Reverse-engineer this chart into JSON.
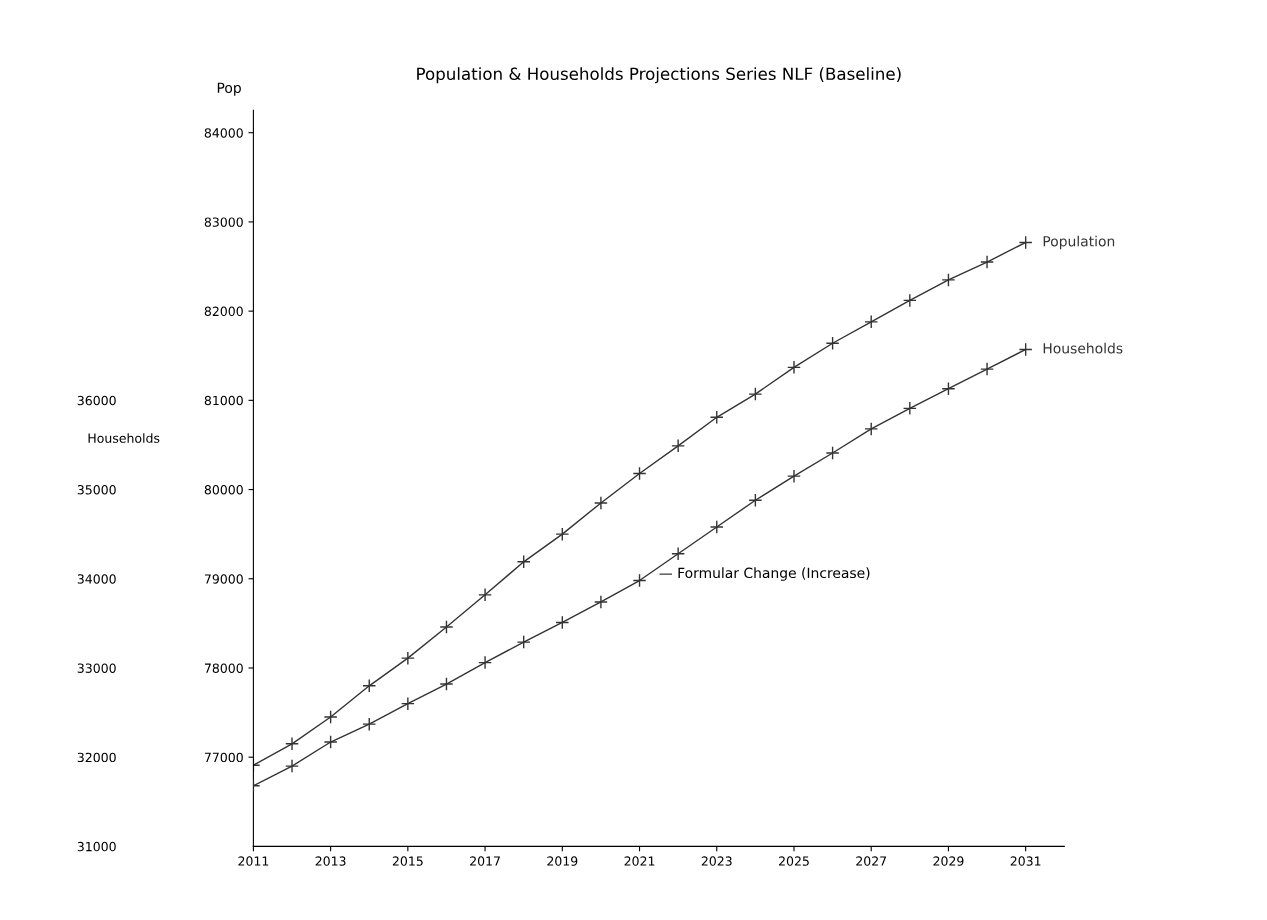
{
  "chart_data": {
    "type": "line",
    "title": "Population & Households Projections Series NLF (Baseline)",
    "ylabel": "Pop",
    "y2label": "Households",
    "x": [
      2011,
      2012,
      2013,
      2014,
      2015,
      2016,
      2017,
      2018,
      2019,
      2020,
      2021,
      2022,
      2023,
      2024,
      2025,
      2026,
      2027,
      2028,
      2029,
      2030,
      2031
    ],
    "series": [
      {
        "name": "Population",
        "color": "#333333",
        "values": [
          76910,
          77150,
          77450,
          77800,
          78110,
          78460,
          78820,
          79190,
          79500,
          79850,
          80180,
          80490,
          80810,
          81070,
          81370,
          81640,
          81880,
          82120,
          82350,
          82550,
          82770
        ]
      },
      {
        "name": "Households",
        "color": "#333333",
        "axis": "y2",
        "values": [
          31680,
          31900,
          32170,
          32370,
          32600,
          32820,
          33060,
          33290,
          33510,
          33740,
          33980,
          34280,
          34580,
          34880,
          35150,
          35410,
          35680,
          35910,
          36130,
          36350,
          36570
        ]
      }
    ],
    "annotations": [
      "— Formular Change (Increase)"
    ],
    "xlim": [
      2011,
      2032
    ],
    "xticks": [
      2011,
      2013,
      2015,
      2017,
      2019,
      2021,
      2023,
      2025,
      2027,
      2029,
      2031
    ],
    "ylim": [
      76000,
      84250
    ],
    "yticks": [
      77000,
      78000,
      79000,
      80000,
      81000,
      82000,
      83000,
      84000
    ],
    "y2lim": [
      31000,
      39250
    ],
    "y2ticks": [
      31000,
      32000,
      33000,
      34000,
      35000,
      36000
    ],
    "marker": "cross",
    "line_style": "solid",
    "grid": false,
    "legend": false
  }
}
